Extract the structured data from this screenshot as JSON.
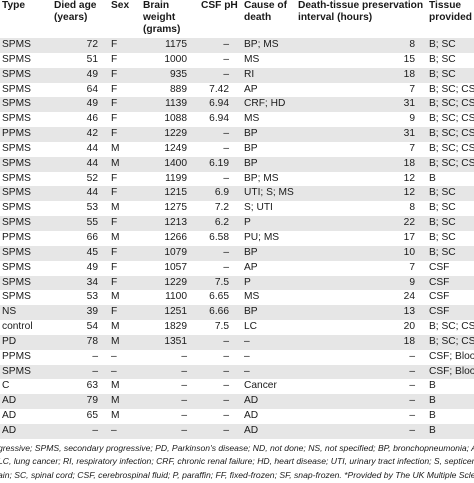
{
  "header": {
    "type": "Type",
    "died_age": "Died age\n(years)",
    "sex": "Sex",
    "brain_weight": "Brain weight\n(grams)",
    "csf_ph": "CSF pH",
    "cause": "Cause of\ndeath",
    "pmi": "Death-tissue preservation\ninterval (hours)",
    "tissue": "Tissue\nprovided"
  },
  "rows": [
    {
      "type": "SPMS",
      "age": "72",
      "sex": "F",
      "brain": "1175",
      "ph": "–",
      "cause": "BP; MS",
      "pmi": "8",
      "tissue": "B; SC"
    },
    {
      "type": "SPMS",
      "age": "51",
      "sex": "F",
      "brain": "1000",
      "ph": "–",
      "cause": "MS",
      "pmi": "15",
      "tissue": "B; SC"
    },
    {
      "type": "SPMS",
      "age": "49",
      "sex": "F",
      "brain": "935",
      "ph": "–",
      "cause": "RI",
      "pmi": "18",
      "tissue": "B; SC"
    },
    {
      "type": "SPMS",
      "age": "64",
      "sex": "F",
      "brain": "889",
      "ph": "7.42",
      "cause": "AP",
      "pmi": "7",
      "tissue": "B; SC; CSF"
    },
    {
      "type": "SPMS",
      "age": "49",
      "sex": "F",
      "brain": "1139",
      "ph": "6.94",
      "cause": "CRF; HD",
      "pmi": "31",
      "tissue": "B; SC; CSF"
    },
    {
      "type": "SPMS",
      "age": "46",
      "sex": "F",
      "brain": "1088",
      "ph": "6.94",
      "cause": "MS",
      "pmi": "9",
      "tissue": "B; SC; CSF"
    },
    {
      "type": "PPMS",
      "age": "42",
      "sex": "F",
      "brain": "1229",
      "ph": "–",
      "cause": "BP",
      "pmi": "31",
      "tissue": "B; SC; CSF"
    },
    {
      "type": "SPMS",
      "age": "44",
      "sex": "M",
      "brain": "1249",
      "ph": "–",
      "cause": "BP",
      "pmi": "7",
      "tissue": "B; SC; CSF"
    },
    {
      "type": "SPMS",
      "age": "44",
      "sex": "M",
      "brain": "1400",
      "ph": "6.19",
      "cause": "BP",
      "pmi": "18",
      "tissue": "B; SC; CSF"
    },
    {
      "type": "SPMS",
      "age": "52",
      "sex": "F",
      "brain": "1199",
      "ph": "–",
      "cause": "BP; MS",
      "pmi": "12",
      "tissue": "B"
    },
    {
      "type": "SPMS",
      "age": "44",
      "sex": "F",
      "brain": "1215",
      "ph": "6.9",
      "cause": "UTI; S; MS",
      "pmi": "12",
      "tissue": "B; SC"
    },
    {
      "type": "SPMS",
      "age": "53",
      "sex": "M",
      "brain": "1275",
      "ph": "7.2",
      "cause": "S; UTI",
      "pmi": "8",
      "tissue": "B; SC"
    },
    {
      "type": "SPMS",
      "age": "55",
      "sex": "F",
      "brain": "1213",
      "ph": "6.2",
      "cause": "P",
      "pmi": "22",
      "tissue": "B; SC"
    },
    {
      "type": "PPMS",
      "age": "66",
      "sex": "M",
      "brain": "1266",
      "ph": "6.58",
      "cause": "PU; MS",
      "pmi": "17",
      "tissue": "B; SC"
    },
    {
      "type": "SPMS",
      "age": "45",
      "sex": "F",
      "brain": "1079",
      "ph": "–",
      "cause": "BP",
      "pmi": "10",
      "tissue": "B; SC"
    },
    {
      "type": "SPMS",
      "age": "49",
      "sex": "F",
      "brain": "1057",
      "ph": "–",
      "cause": "AP",
      "pmi": "7",
      "tissue": "CSF"
    },
    {
      "type": "SPMS",
      "age": "34",
      "sex": "F",
      "brain": "1229",
      "ph": "7.5",
      "cause": "P",
      "pmi": "9",
      "tissue": "CSF"
    },
    {
      "type": "SPMS",
      "age": "53",
      "sex": "M",
      "brain": "1100",
      "ph": "6.65",
      "cause": "MS",
      "pmi": "24",
      "tissue": "CSF"
    },
    {
      "type": "NS",
      "age": "39",
      "sex": "F",
      "brain": "1251",
      "ph": "6.66",
      "cause": "BP",
      "pmi": "13",
      "tissue": "CSF"
    },
    {
      "type": "control",
      "age": "54",
      "sex": "M",
      "brain": "1829",
      "ph": "7.5",
      "cause": "LC",
      "pmi": "20",
      "tissue": "B; SC; CSF"
    },
    {
      "type": "PD",
      "age": "78",
      "sex": "M",
      "brain": "1351",
      "ph": "–",
      "cause": "–",
      "pmi": "18",
      "tissue": "B; SC; CSF"
    },
    {
      "type": "PPMS",
      "age": "–",
      "sex": "–",
      "brain": "–",
      "ph": "–",
      "cause": "–",
      "pmi": "–",
      "tissue": "CSF; Blood"
    },
    {
      "type": "SPMS",
      "age": "–",
      "sex": "–",
      "brain": "–",
      "ph": "–",
      "cause": "–",
      "pmi": "–",
      "tissue": "CSF; Blood"
    },
    {
      "type": "C",
      "age": "63",
      "sex": "M",
      "brain": "–",
      "ph": "–",
      "cause": "Cancer",
      "pmi": "–",
      "tissue": "B"
    },
    {
      "type": "AD",
      "age": "79",
      "sex": "M",
      "brain": "–",
      "ph": "–",
      "cause": "AD",
      "pmi": "–",
      "tissue": "B"
    },
    {
      "type": "AD",
      "age": "65",
      "sex": "M",
      "brain": "–",
      "ph": "–",
      "cause": "AD",
      "pmi": "–",
      "tissue": "B"
    },
    {
      "type": "AD",
      "age": "–",
      "sex": "–",
      "brain": "–",
      "ph": "–",
      "cause": "AD",
      "pmi": "–",
      "tissue": "B"
    }
  ],
  "footnotes": [
    "gressive; SPMS, secondary progressive; PD, Parkinson's disease; ND, not done; NS, not specified; BP, bronchopneumonia; AP,",
    "LC, lung cancer; RI, respiratory infection; CRF, chronic renal failure; HD, heart disease; UTI, urinary tract infection; S, septicemi",
    "ain; SC, spinal cord; CSF, cerebrospinal fluid; P, paraffin; FF, fixed-frozen; SF, snap-frozen. *Provided by The UK Multiple Sclero"
  ]
}
